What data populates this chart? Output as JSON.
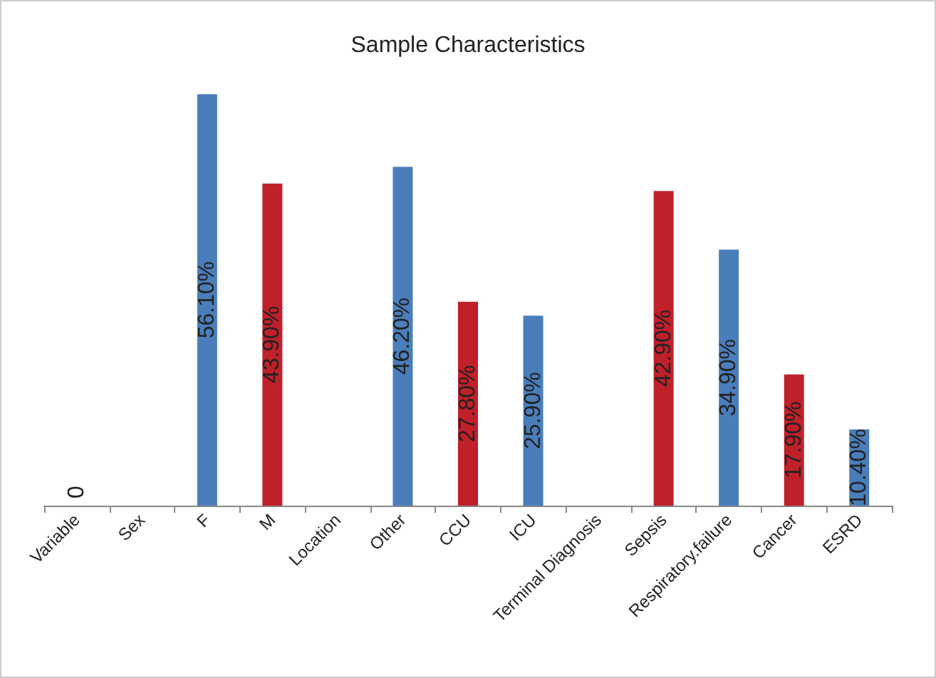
{
  "chart_data": {
    "type": "bar",
    "title": "Sample Characteristics",
    "categories": [
      "Variable",
      "Sex",
      "F",
      "M",
      "Location",
      "Other",
      "CCU",
      "ICU",
      "Terminal Diagnosis",
      "Sepsis",
      "Respiratory.failure",
      "Cancer",
      "ESRD"
    ],
    "values": [
      0,
      null,
      56.1,
      43.9,
      null,
      46.2,
      27.8,
      25.9,
      null,
      42.9,
      34.9,
      17.9,
      10.4
    ],
    "colors": [
      "#4a7ebb",
      "#4a7ebb",
      "#4a7ebb",
      "#c0202a",
      "#4a7ebb",
      "#4a7ebb",
      "#c0202a",
      "#4a7ebb",
      "#4a7ebb",
      "#c0202a",
      "#4a7ebb",
      "#c0202a",
      "#4a7ebb"
    ],
    "value_labels": [
      "0",
      null,
      "56.10%",
      "43.90%",
      null,
      "46.20%",
      "27.80%",
      "25.90%",
      null,
      "42.90%",
      "34.90%",
      "17.90%",
      "10.40%"
    ],
    "grid": false
  }
}
